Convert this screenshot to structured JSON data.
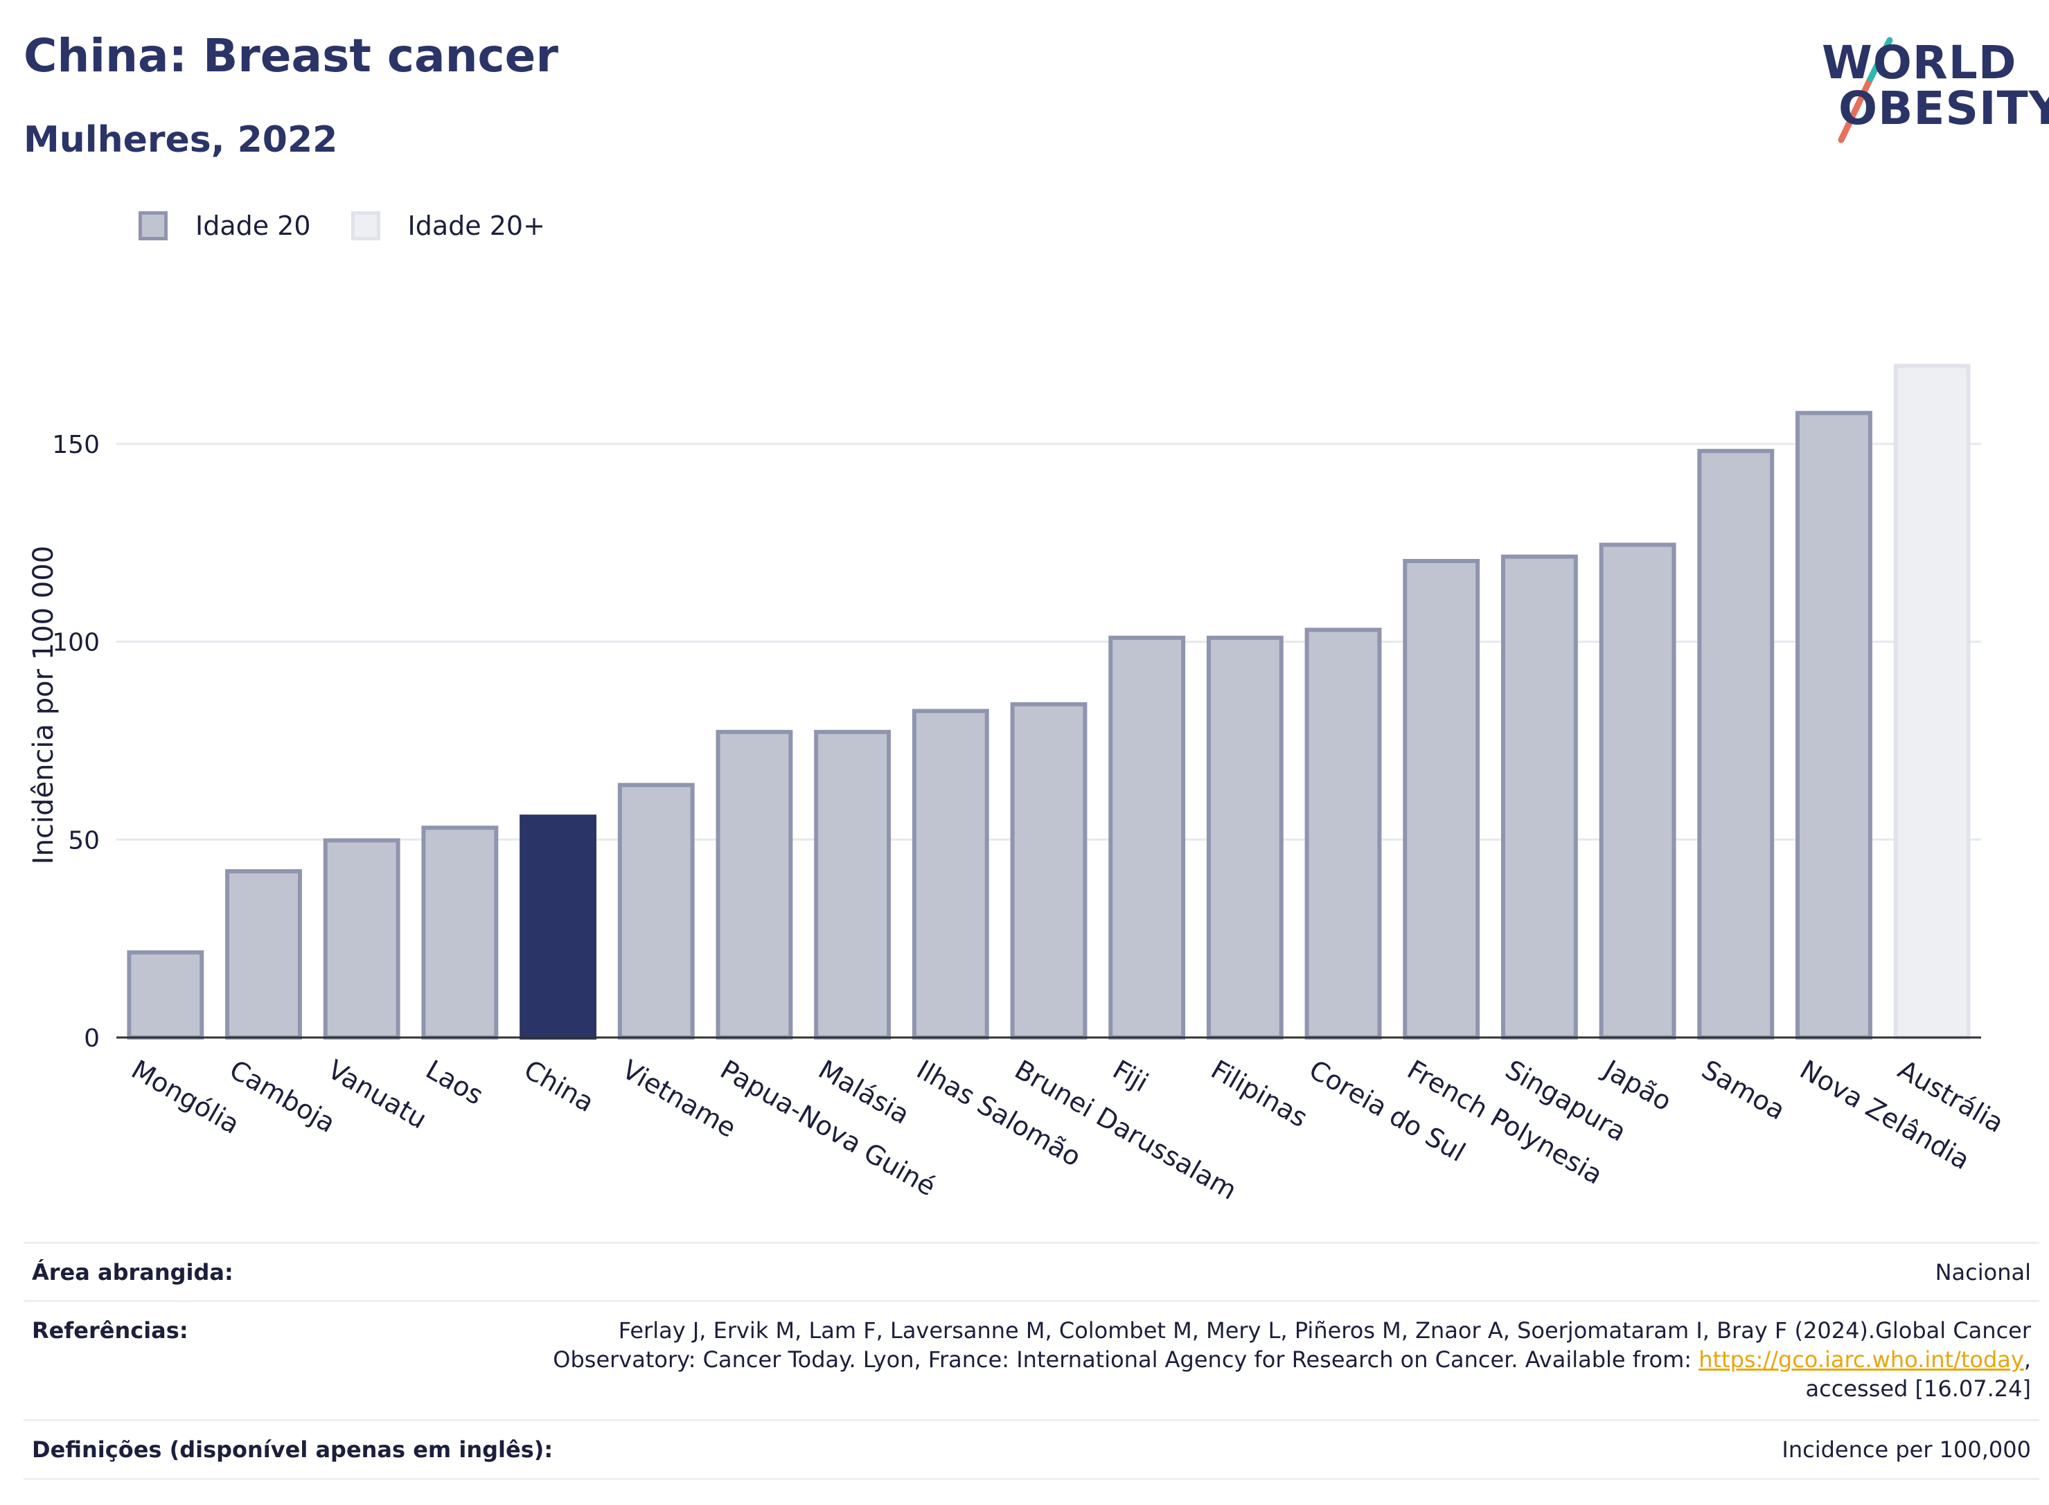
{
  "header": {
    "title": "China: Breast cancer",
    "subtitle": "Mulheres, 2022",
    "logo_line1": "WORLD",
    "logo_line2": "OBESITY"
  },
  "legend": [
    {
      "label": "Idade 20",
      "color": "#c0c4d1"
    },
    {
      "label": "Idade 20+",
      "color": "#eeeff3"
    }
  ],
  "chart_data": {
    "type": "bar",
    "ylabel": "Incidência por 100 000",
    "ylim": [
      0,
      175
    ],
    "yticks": [
      0,
      50,
      100,
      150
    ],
    "grid": true,
    "legend_position": "top-left",
    "categories": [
      "Mongólia",
      "Camboja",
      "Vanuatu",
      "Laos",
      "China",
      "Vietname",
      "Papua-Nova Guiné",
      "Malásia",
      "Ilhas Salomão",
      "Brunei Darussalam",
      "Fiji",
      "Filipinas",
      "Coreia do Sul",
      "French Polynesia",
      "Singapura",
      "Japão",
      "Samoa",
      "Nova Zelândia",
      "Austrália"
    ],
    "values": [
      21.5,
      42,
      49.8,
      53,
      55.8,
      63.8,
      77.2,
      77.2,
      82.5,
      84.2,
      101,
      101,
      103,
      120.4,
      121.5,
      124.5,
      148.2,
      157.8,
      169.7
    ],
    "series_group": [
      "Idade 20",
      "Idade 20",
      "Idade 20",
      "Idade 20",
      "Idade 20",
      "Idade 20",
      "Idade 20",
      "Idade 20",
      "Idade 20",
      "Idade 20",
      "Idade 20",
      "Idade 20",
      "Idade 20",
      "Idade 20",
      "Idade 20",
      "Idade 20",
      "Idade 20",
      "Idade 20",
      "Idade 20+"
    ],
    "highlight": "China",
    "colors": {
      "normal_fill": "#c0c4d1",
      "normal_stroke": "#8f95ae",
      "highlight": "#2b3467",
      "plus_fill": "#eeeff3",
      "plus_stroke": "#e1e3ea",
      "grid": "#e6e8ee",
      "axis": "#333333"
    }
  },
  "footer": {
    "area_label": "Área abrangida:",
    "area_value": "Nacional",
    "ref_label": "Referências:",
    "ref_line1": "Ferlay J, Ervik M, Lam F, Laversanne M, Colombet M, Mery L, Piñeros M, Znaor A, Soerjomataram I, Bray F (2024).Global Cancer",
    "ref_line2_pre": "Observatory: Cancer Today. Lyon, France: International Agency for Research on Cancer. Available from: ",
    "ref_link": "https://gco.iarc.who.int/today",
    "ref_line2_post": ",",
    "ref_line3": "accessed [16.07.24]",
    "def_label": "Definições (disponível apenas em inglês):",
    "def_value": "Incidence per 100,000"
  }
}
